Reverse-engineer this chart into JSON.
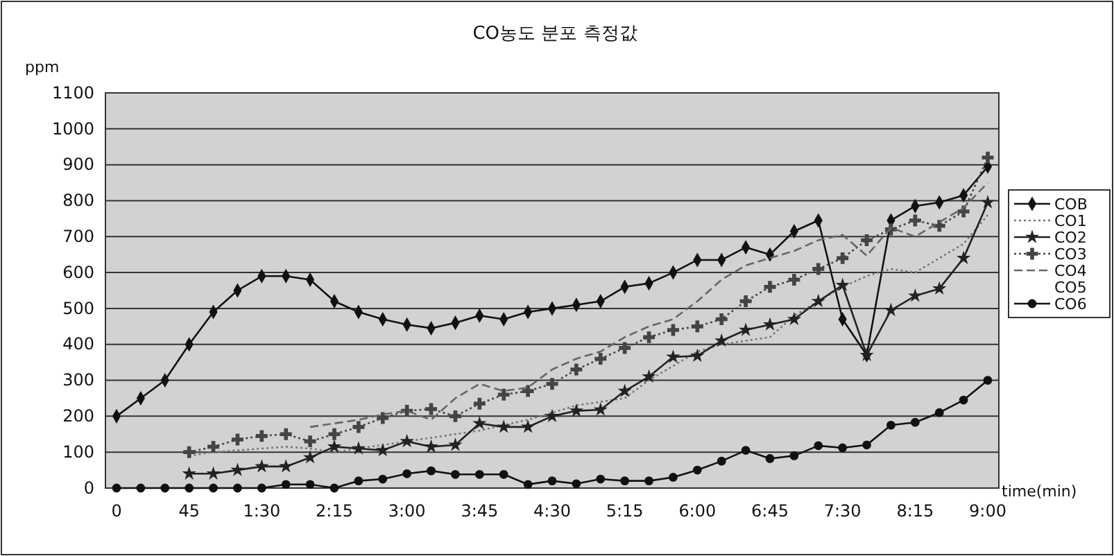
{
  "chart_data": {
    "type": "line",
    "title": "CO농도 분포 측정값",
    "ylabel": "ppm",
    "xlabel": "time(min)",
    "categories": [
      "0",
      null,
      null,
      "45",
      null,
      null,
      "1:30",
      null,
      null,
      "2:15",
      null,
      null,
      "3:00",
      null,
      null,
      "3:45",
      null,
      null,
      "4:30",
      null,
      null,
      "5:15",
      null,
      null,
      "6:00",
      null,
      null,
      "6:45",
      null,
      null,
      "7:30",
      null,
      null,
      "8:15",
      null,
      null,
      "9:00"
    ],
    "ylim": [
      0,
      1100
    ],
    "yticks": [
      0,
      100,
      200,
      300,
      400,
      500,
      600,
      700,
      800,
      900,
      1000,
      1100
    ],
    "grid": "y",
    "legend": "right",
    "series": [
      {
        "name": "COB",
        "color": "#111111",
        "marker": "diamond",
        "line_style": "solid",
        "values": [
          200,
          250,
          300,
          400,
          490,
          550,
          590,
          590,
          580,
          520,
          490,
          470,
          455,
          445,
          460,
          480,
          470,
          490,
          500,
          510,
          520,
          560,
          570,
          600,
          635,
          635,
          670,
          650,
          715,
          745,
          470,
          370,
          745,
          785,
          795,
          815,
          895
        ]
      },
      {
        "name": "CO1",
        "color": "#777777",
        "marker": "none",
        "line_style": "dotted",
        "values": [
          null,
          null,
          null,
          90,
          100,
          105,
          110,
          115,
          110,
          100,
          110,
          120,
          130,
          140,
          150,
          160,
          175,
          190,
          210,
          230,
          240,
          250,
          300,
          340,
          380,
          400,
          410,
          420,
          480,
          520,
          560,
          590,
          610,
          600,
          640,
          680,
          760
        ]
      },
      {
        "name": "CO2",
        "color": "#222222",
        "marker": "star",
        "line_style": "solid",
        "values": [
          null,
          null,
          null,
          40,
          40,
          50,
          60,
          60,
          85,
          115,
          110,
          105,
          130,
          115,
          120,
          180,
          170,
          170,
          200,
          215,
          218,
          270,
          310,
          365,
          368,
          410,
          440,
          455,
          470,
          520,
          565,
          370,
          495,
          535,
          555,
          640,
          795
        ]
      },
      {
        "name": "CO3",
        "color": "#444444",
        "marker": "cross",
        "line_style": "dotted",
        "values": [
          null,
          null,
          null,
          100,
          115,
          135,
          145,
          150,
          130,
          150,
          170,
          195,
          215,
          220,
          200,
          235,
          260,
          270,
          290,
          330,
          360,
          390,
          420,
          440,
          450,
          470,
          520,
          560,
          580,
          610,
          640,
          690,
          720,
          745,
          730,
          770,
          920
        ]
      },
      {
        "name": "CO4",
        "color": "#666666",
        "marker": "none",
        "line_style": "dashed",
        "values": [
          null,
          null,
          null,
          null,
          null,
          null,
          null,
          null,
          170,
          180,
          190,
          205,
          215,
          190,
          250,
          290,
          270,
          280,
          330,
          360,
          380,
          420,
          450,
          470,
          520,
          580,
          620,
          640,
          660,
          690,
          705,
          647,
          725,
          700,
          740,
          780,
          850
        ]
      },
      {
        "name": "CO5",
        "values": [
          null,
          null,
          null,
          null,
          null,
          null,
          null,
          null,
          null,
          null,
          null,
          null,
          null,
          null,
          null,
          null,
          null,
          null,
          null,
          null,
          null,
          null,
          null,
          null,
          null,
          null,
          null,
          null,
          null,
          null,
          null,
          null,
          null,
          null,
          null,
          null,
          null
        ]
      },
      {
        "name": "CO6",
        "color": "#111111",
        "marker": "circle",
        "line_style": "solid",
        "values": [
          0,
          0,
          0,
          0,
          0,
          0,
          0,
          10,
          10,
          0,
          20,
          25,
          40,
          48,
          38,
          38,
          38,
          10,
          20,
          12,
          25,
          20,
          20,
          30,
          50,
          75,
          105,
          82,
          90,
          118,
          112,
          120,
          175,
          183,
          210,
          245,
          300
        ]
      }
    ]
  }
}
